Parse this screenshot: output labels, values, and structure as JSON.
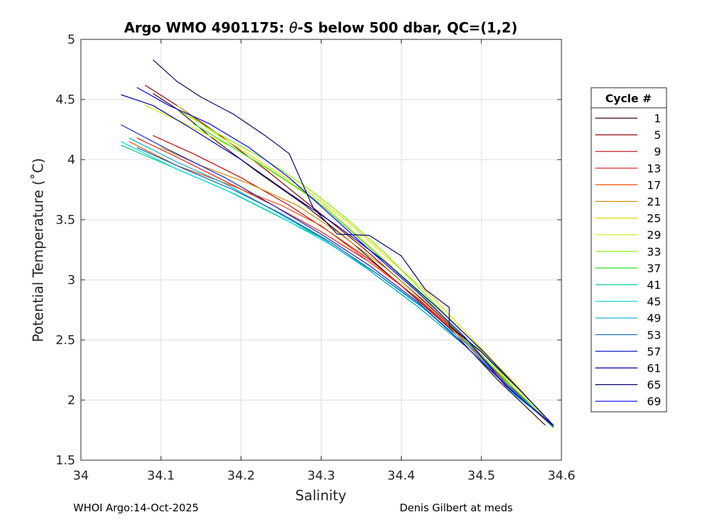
{
  "chart_data": {
    "type": "line",
    "title": "Argo WMO 4901175: θ-S below 500 dbar,  QC=(1,2)",
    "title_parts": {
      "prefix": "Argo WMO 4901175: ",
      "theta": "θ",
      "suffix": "-S below 500 dbar,  QC=(1,2)"
    },
    "xlabel": "Salinity",
    "ylabel": "Potential Temperature (˚C)",
    "xlim": [
      34,
      34.6
    ],
    "ylim": [
      1.5,
      5
    ],
    "xticks": [
      34,
      34.1,
      34.2,
      34.3,
      34.4,
      34.5,
      34.6
    ],
    "xtick_labels": [
      "34",
      "34.1",
      "34.2",
      "34.3",
      "34.4",
      "34.5",
      "34.6"
    ],
    "yticks": [
      1.5,
      2,
      2.5,
      3,
      3.5,
      4,
      4.5,
      5
    ],
    "ytick_labels": [
      "1.5",
      "2",
      "2.5",
      "3",
      "3.5",
      "4",
      "4.5",
      "5"
    ],
    "grid": true,
    "legend_title": "Cycle #",
    "legend_position": "right",
    "series": [
      {
        "name": "1",
        "color": "#3a0000",
        "x": [
          34.09,
          34.12,
          34.16,
          34.22,
          34.28,
          34.34,
          34.4,
          34.46,
          34.52,
          34.58
        ],
        "y": [
          4.55,
          4.42,
          4.2,
          3.9,
          3.62,
          3.3,
          2.95,
          2.6,
          2.17,
          1.79
        ]
      },
      {
        "name": "5",
        "color": "#8b0000",
        "x": [
          34.08,
          34.12,
          34.17,
          34.23,
          34.29,
          34.35,
          34.41,
          34.47,
          34.53,
          34.59
        ],
        "y": [
          4.62,
          4.45,
          4.22,
          3.92,
          3.6,
          3.28,
          2.93,
          2.57,
          2.15,
          1.78
        ]
      },
      {
        "name": "9",
        "color": "#c00000",
        "x": [
          34.09,
          34.14,
          34.2,
          34.26,
          34.31,
          34.36,
          34.41,
          34.47,
          34.53,
          34.59
        ],
        "y": [
          4.2,
          4.05,
          3.85,
          3.62,
          3.4,
          3.17,
          2.9,
          2.55,
          2.15,
          1.78
        ]
      },
      {
        "name": "13",
        "color": "#e01818",
        "x": [
          34.07,
          34.12,
          34.18,
          34.24,
          34.3,
          34.36,
          34.42,
          34.48,
          34.54,
          34.59
        ],
        "y": [
          4.18,
          4.02,
          3.82,
          3.62,
          3.4,
          3.15,
          2.85,
          2.5,
          2.1,
          1.78
        ]
      },
      {
        "name": "17",
        "color": "#ff4a00",
        "x": [
          34.06,
          34.12,
          34.19,
          34.25,
          34.3,
          34.35,
          34.41,
          34.47,
          34.53,
          34.59
        ],
        "y": [
          4.15,
          3.95,
          3.78,
          3.62,
          3.45,
          3.2,
          2.9,
          2.55,
          2.12,
          1.78
        ]
      },
      {
        "name": "21",
        "color": "#cc8a00",
        "x": [
          34.1,
          34.15,
          34.21,
          34.27,
          34.32,
          34.38,
          34.43,
          34.49,
          34.54,
          34.59
        ],
        "y": [
          4.1,
          3.95,
          3.8,
          3.62,
          3.4,
          3.1,
          2.82,
          2.45,
          2.08,
          1.77
        ]
      },
      {
        "name": "25",
        "color": "#e6d600",
        "x": [
          34.12,
          34.16,
          34.22,
          34.28,
          34.33,
          34.38,
          34.44,
          34.49,
          34.55,
          34.59
        ],
        "y": [
          4.45,
          4.25,
          4.0,
          3.75,
          3.5,
          3.2,
          2.85,
          2.5,
          2.08,
          1.77
        ]
      },
      {
        "name": "29",
        "color": "#c8f000",
        "x": [
          34.08,
          34.13,
          34.19,
          34.25,
          34.31,
          34.36,
          34.42,
          34.48,
          34.54,
          34.59
        ],
        "y": [
          4.45,
          4.3,
          4.1,
          3.85,
          3.58,
          3.28,
          2.92,
          2.55,
          2.12,
          1.77
        ]
      },
      {
        "name": "33",
        "color": "#7ef000",
        "x": [
          34.12,
          34.17,
          34.23,
          34.28,
          34.33,
          34.38,
          34.43,
          34.49,
          34.54,
          34.59
        ],
        "y": [
          4.42,
          4.22,
          4.0,
          3.78,
          3.52,
          3.22,
          2.88,
          2.48,
          2.1,
          1.77
        ]
      },
      {
        "name": "37",
        "color": "#22e022",
        "x": [
          34.14,
          34.19,
          34.24,
          34.29,
          34.33,
          34.38,
          34.43,
          34.48,
          34.54,
          34.59
        ],
        "y": [
          4.3,
          4.1,
          3.9,
          3.68,
          3.45,
          3.15,
          2.85,
          2.5,
          2.1,
          1.77
        ]
      },
      {
        "name": "41",
        "color": "#00d08a",
        "x": [
          34.05,
          34.11,
          34.18,
          34.24,
          34.3,
          34.36,
          34.42,
          34.48,
          34.54,
          34.59
        ],
        "y": [
          4.12,
          3.95,
          3.75,
          3.55,
          3.35,
          3.08,
          2.78,
          2.45,
          2.07,
          1.79
        ]
      },
      {
        "name": "45",
        "color": "#00d8d8",
        "x": [
          34.05,
          34.12,
          34.19,
          34.25,
          34.31,
          34.37,
          34.43,
          34.49,
          34.54,
          34.59
        ],
        "y": [
          4.15,
          3.92,
          3.72,
          3.52,
          3.3,
          3.05,
          2.75,
          2.42,
          2.05,
          1.79
        ]
      },
      {
        "name": "49",
        "color": "#00a8d0",
        "x": [
          34.06,
          34.12,
          34.18,
          34.24,
          34.3,
          34.36,
          34.42,
          34.48,
          34.54,
          34.59
        ],
        "y": [
          4.18,
          3.98,
          3.8,
          3.58,
          3.35,
          3.08,
          2.78,
          2.45,
          2.08,
          1.78
        ]
      },
      {
        "name": "53",
        "color": "#0060b0",
        "x": [
          34.07,
          34.13,
          34.19,
          34.25,
          34.31,
          34.37,
          34.43,
          34.48,
          34.54,
          34.59
        ],
        "y": [
          4.1,
          3.92,
          3.75,
          3.55,
          3.32,
          3.05,
          2.76,
          2.45,
          2.06,
          1.79
        ]
      },
      {
        "name": "57",
        "color": "#1020c8",
        "x": [
          34.05,
          34.11,
          34.18,
          34.24,
          34.3,
          34.36,
          34.42,
          34.48,
          34.54,
          34.59
        ],
        "y": [
          4.29,
          4.08,
          3.85,
          3.62,
          3.38,
          3.12,
          2.82,
          2.45,
          2.07,
          1.78
        ]
      },
      {
        "name": "61",
        "color": "#0000a0",
        "x": [
          34.05,
          34.09,
          34.14,
          34.2,
          34.26,
          34.32,
          34.38,
          34.44,
          34.5,
          34.55,
          34.59
        ],
        "y": [
          4.54,
          4.45,
          4.25,
          4.0,
          3.72,
          3.45,
          3.15,
          2.8,
          2.42,
          2.07,
          1.79
        ]
      },
      {
        "name": "65",
        "color": "#000060",
        "x": [
          34.09,
          34.12,
          34.15,
          34.19,
          34.23,
          34.26,
          34.29,
          34.32,
          34.36,
          34.4,
          34.43,
          34.46,
          34.46,
          34.5,
          34.55,
          34.59
        ],
        "y": [
          4.83,
          4.65,
          4.52,
          4.38,
          4.2,
          4.05,
          3.6,
          3.38,
          3.37,
          3.2,
          2.92,
          2.77,
          2.62,
          2.4,
          2.07,
          1.79
        ]
      },
      {
        "name": "69",
        "color": "#0000ff",
        "x": [
          34.07,
          34.11,
          34.16,
          34.21,
          34.26,
          34.31,
          34.36,
          34.42,
          34.48,
          34.53,
          34.59
        ],
        "y": [
          4.6,
          4.45,
          4.3,
          4.1,
          3.85,
          3.55,
          3.25,
          2.9,
          2.52,
          2.12,
          1.79
        ]
      }
    ]
  },
  "footer": {
    "left": "WHOI Argo:14-Oct-2025",
    "right": "Denis Gilbert at meds"
  }
}
